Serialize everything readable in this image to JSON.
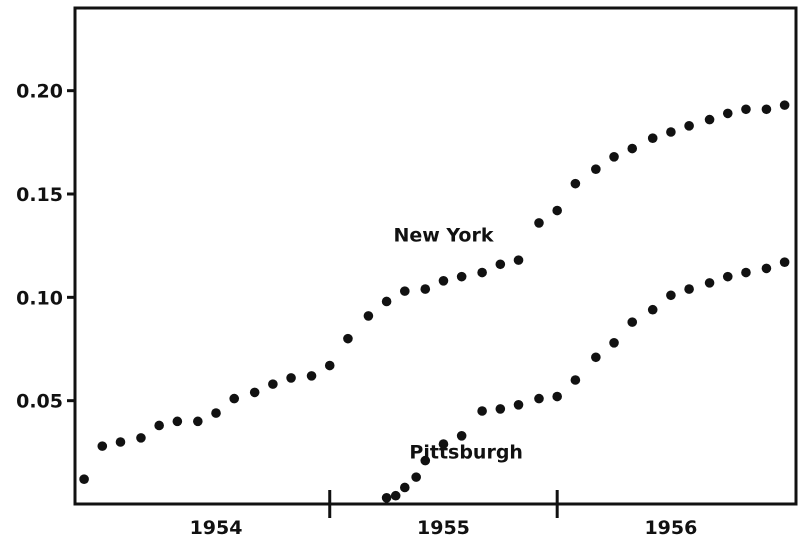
{
  "chart_data": {
    "type": "scatter",
    "title": "",
    "xlabel": "",
    "ylabel": "",
    "xlim": [
      1953.38,
      1956.55
    ],
    "ylim": [
      0.0,
      0.24
    ],
    "x_ticks": [
      {
        "value": 1954.5,
        "label": ""
      },
      {
        "value": 1955.5,
        "label": ""
      }
    ],
    "x_tick_labels": [
      {
        "value": 1954.0,
        "label": "1954"
      },
      {
        "value": 1955.0,
        "label": "1955"
      },
      {
        "value": 1956.0,
        "label": "1956"
      }
    ],
    "y_ticks": [
      {
        "value": 0.05,
        "label": "0.05"
      },
      {
        "value": 0.1,
        "label": "0.10"
      },
      {
        "value": 0.15,
        "label": "0.15"
      },
      {
        "value": 0.2,
        "label": "0.20"
      }
    ],
    "grid": false,
    "colors": {
      "marker": "#111111",
      "axis": "#111111"
    },
    "annotations": [
      {
        "text": "New York",
        "x": 1955.0,
        "y": 0.127
      },
      {
        "text": "Pittsburgh",
        "x": 1955.1,
        "y": 0.022
      }
    ],
    "series": [
      {
        "name": "New York",
        "x": [
          1953.42,
          1953.5,
          1953.58,
          1953.67,
          1953.75,
          1953.83,
          1953.92,
          1954.0,
          1954.08,
          1954.17,
          1954.25,
          1954.33,
          1954.42,
          1954.5,
          1954.58,
          1954.67,
          1954.75,
          1954.83,
          1954.92,
          1955.0,
          1955.08,
          1955.17,
          1955.25,
          1955.33,
          1955.42,
          1955.5,
          1955.58,
          1955.67,
          1955.75,
          1955.83,
          1955.92,
          1956.0,
          1956.08,
          1956.17,
          1956.25,
          1956.33,
          1956.42,
          1956.5
        ],
        "y": [
          0.012,
          0.028,
          0.03,
          0.032,
          0.038,
          0.04,
          0.04,
          0.044,
          0.051,
          0.054,
          0.058,
          0.061,
          0.062,
          0.067,
          0.08,
          0.091,
          0.098,
          0.103,
          0.104,
          0.108,
          0.11,
          0.112,
          0.116,
          0.118,
          0.136,
          0.142,
          0.155,
          0.162,
          0.168,
          0.172,
          0.177,
          0.18,
          0.183,
          0.186,
          0.189,
          0.191,
          0.191,
          0.193
        ]
      },
      {
        "name": "Pittsburgh",
        "x": [
          1954.75,
          1954.79,
          1954.83,
          1954.88,
          1954.92,
          1955.0,
          1955.08,
          1955.17,
          1955.25,
          1955.33,
          1955.42,
          1955.5,
          1955.58,
          1955.67,
          1955.75,
          1955.83,
          1955.92,
          1956.0,
          1956.08,
          1956.17,
          1956.25,
          1956.33,
          1956.42,
          1956.5
        ],
        "y": [
          0.003,
          0.004,
          0.008,
          0.013,
          0.021,
          0.029,
          0.033,
          0.045,
          0.046,
          0.048,
          0.051,
          0.052,
          0.06,
          0.071,
          0.078,
          0.088,
          0.094,
          0.101,
          0.104,
          0.107,
          0.11,
          0.112,
          0.114,
          0.117
        ]
      }
    ]
  }
}
